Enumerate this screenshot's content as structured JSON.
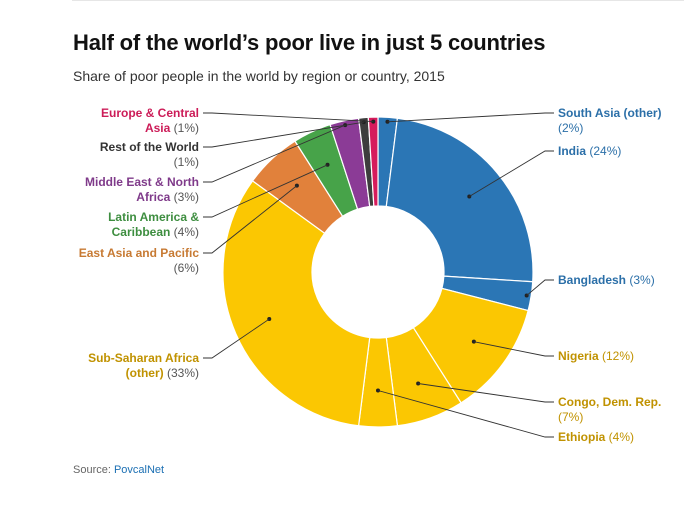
{
  "title": "Half of the world’s poor live in just 5 countries",
  "subtitle": "Share of poor people in the world by region or country, 2015",
  "source": {
    "prefix": "Source: ",
    "link_text": "PovcalNet"
  },
  "chart_data": {
    "type": "pie",
    "variant": "donut",
    "start": "top, clockwise",
    "slices": [
      {
        "label": "South Asia (other)",
        "pct_label": "(2%)",
        "value": 2,
        "color": "#2b76b5"
      },
      {
        "label": "India",
        "pct_label": "(24%)",
        "value": 24,
        "color": "#2b76b5"
      },
      {
        "label": "Bangladesh",
        "pct_label": "(3%)",
        "value": 3,
        "color": "#2b76b5"
      },
      {
        "label": "Nigeria",
        "pct_label": "(12%)",
        "value": 12,
        "color": "#fbc702"
      },
      {
        "label": "Congo, Dem. Rep.",
        "pct_label": "(7%)",
        "value": 7,
        "color": "#fbc702"
      },
      {
        "label": "Ethiopia",
        "pct_label": "(4%)",
        "value": 4,
        "color": "#fbc702"
      },
      {
        "label": "Sub-Saharan Africa (other)",
        "pct_label": "(33%)",
        "value": 33,
        "color": "#fbc702"
      },
      {
        "label": "East Asia and Pacific",
        "pct_label": "(6%)",
        "value": 6,
        "color": "#e1813b"
      },
      {
        "label": "Latin America & Caribbean",
        "pct_label": "(4%)",
        "value": 4,
        "color": "#47a349"
      },
      {
        "label": "Middle East & North Africa",
        "pct_label": "(3%)",
        "value": 3,
        "color": "#8b3b96"
      },
      {
        "label": "Rest of the World",
        "pct_label": "(1%)",
        "value": 1,
        "color": "#3d3d3d"
      },
      {
        "label": "Europe & Central Asia",
        "pct_label": "(1%)",
        "value": 1,
        "color": "#d61b5c"
      }
    ]
  }
}
